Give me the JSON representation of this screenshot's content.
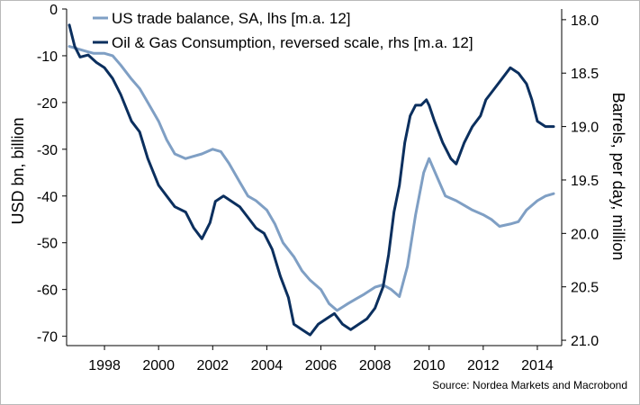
{
  "chart_data": {
    "type": "line",
    "title": "",
    "xlabel": "",
    "ylabel_left": "USD bn, billion",
    "ylabel_right": "Barrels, per day, million",
    "xlim": [
      1996.6,
      2014.9
    ],
    "ylim_left": [
      -72,
      0
    ],
    "ylim_right": [
      21.05,
      17.9
    ],
    "right_axis_reversed": true,
    "x_ticks": [
      1998,
      2000,
      2002,
      2004,
      2006,
      2008,
      2010,
      2012,
      2014
    ],
    "x_tick_labels": [
      "1998",
      "2000",
      "2002",
      "2004",
      "2006",
      "2008",
      "2010",
      "2012",
      "2014"
    ],
    "y_left_ticks": [
      0,
      -10,
      -20,
      -30,
      -40,
      -50,
      -60,
      -70
    ],
    "y_left_tick_labels": [
      "0",
      "-10",
      "-20",
      "-30",
      "-40",
      "-50",
      "-60",
      "-70"
    ],
    "y_right_ticks": [
      18.0,
      18.5,
      19.0,
      19.5,
      20.0,
      20.5,
      21.0
    ],
    "y_right_tick_labels": [
      "18.0",
      "18.5",
      "19.0",
      "19.5",
      "20.0",
      "20.5",
      "21.0"
    ],
    "legend_position": "top",
    "series": [
      {
        "name": "US trade balance, SA, lhs [m.a. 12]",
        "axis": "left",
        "color": "#7f9fc4",
        "x": [
          1996.7,
          1997.0,
          1997.3,
          1997.6,
          1998.0,
          1998.3,
          1998.6,
          1999.0,
          1999.3,
          1999.6,
          2000.0,
          2000.3,
          2000.6,
          2001.0,
          2001.3,
          2001.6,
          2002.0,
          2002.3,
          2002.6,
          2003.0,
          2003.3,
          2003.6,
          2004.0,
          2004.3,
          2004.6,
          2005.0,
          2005.3,
          2005.6,
          2006.0,
          2006.3,
          2006.6,
          2007.0,
          2007.3,
          2007.6,
          2008.0,
          2008.3,
          2008.6,
          2008.9,
          2009.2,
          2009.5,
          2009.8,
          2010.0,
          2010.3,
          2010.6,
          2011.0,
          2011.3,
          2011.6,
          2012.0,
          2012.3,
          2012.6,
          2013.0,
          2013.3,
          2013.6,
          2014.0,
          2014.3,
          2014.6
        ],
        "values": [
          -8,
          -8.5,
          -9,
          -9.5,
          -9.5,
          -10,
          -12,
          -15,
          -17,
          -20,
          -24,
          -28,
          -31,
          -32,
          -31.5,
          -31,
          -30,
          -30.5,
          -33,
          -37,
          -40,
          -41,
          -43,
          -46,
          -50,
          -53,
          -56,
          -58,
          -60,
          -63,
          -64.5,
          -63,
          -62,
          -61,
          -59.5,
          -59,
          -60,
          -61.5,
          -55,
          -44,
          -35,
          -32,
          -36,
          -40,
          -41,
          -42,
          -43,
          -44,
          -45,
          -46.5,
          -46,
          -45.5,
          -43,
          -41,
          -40,
          -39.5
        ]
      },
      {
        "name": "Oil & Gas Consumption, reversed scale, rhs [m.a. 12]",
        "axis": "right",
        "color": "#0b2f5e",
        "x": [
          1996.7,
          1996.9,
          1997.1,
          1997.4,
          1997.7,
          1998.0,
          1998.3,
          1998.6,
          1999.0,
          1999.3,
          1999.6,
          2000.0,
          2000.3,
          2000.6,
          2001.0,
          2001.3,
          2001.6,
          2001.9,
          2002.1,
          2002.4,
          2002.7,
          2003.0,
          2003.3,
          2003.6,
          2003.9,
          2004.2,
          2004.5,
          2004.8,
          2005.0,
          2005.3,
          2005.6,
          2005.9,
          2006.2,
          2006.5,
          2006.8,
          2007.1,
          2007.4,
          2007.7,
          2008.0,
          2008.3,
          2008.5,
          2008.7,
          2008.9,
          2009.1,
          2009.3,
          2009.5,
          2009.7,
          2009.9,
          2010.0,
          2010.2,
          2010.5,
          2010.8,
          2011.0,
          2011.3,
          2011.6,
          2011.9,
          2012.1,
          2012.4,
          2012.7,
          2013.0,
          2013.3,
          2013.6,
          2013.8,
          2014.0,
          2014.3,
          2014.6
        ],
        "values": [
          18.05,
          18.25,
          18.35,
          18.33,
          18.4,
          18.45,
          18.55,
          18.7,
          18.95,
          19.05,
          19.3,
          19.55,
          19.65,
          19.75,
          19.8,
          19.95,
          20.05,
          19.9,
          19.7,
          19.65,
          19.7,
          19.75,
          19.85,
          19.95,
          20.0,
          20.15,
          20.4,
          20.6,
          20.85,
          20.9,
          20.95,
          20.85,
          20.8,
          20.75,
          20.85,
          20.9,
          20.85,
          20.8,
          20.7,
          20.5,
          20.2,
          19.8,
          19.55,
          19.15,
          18.9,
          18.8,
          18.8,
          18.75,
          18.8,
          18.95,
          19.15,
          19.3,
          19.35,
          19.15,
          19.0,
          18.9,
          18.75,
          18.65,
          18.55,
          18.45,
          18.5,
          18.6,
          18.75,
          18.95,
          19.0,
          19.0
        ]
      }
    ],
    "source": "Source: Nordea Markets and Macrobond"
  }
}
